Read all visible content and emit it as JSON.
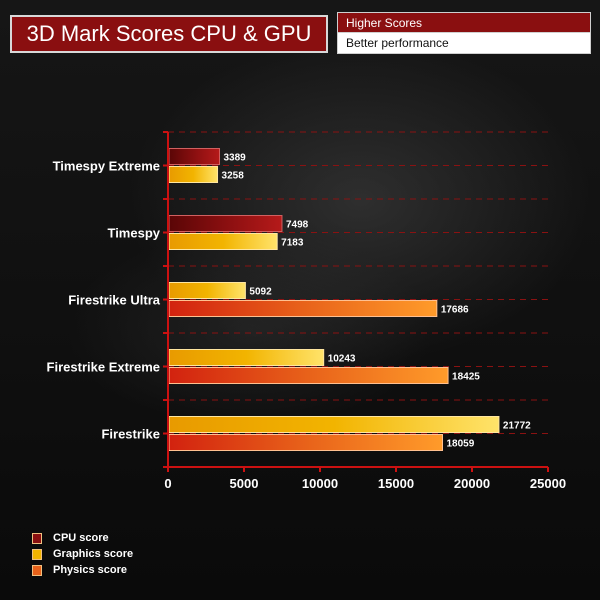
{
  "title": "3D Mark Scores CPU & GPU",
  "legend_top": {
    "line1": "Higher Scores",
    "line2": "Better performance"
  },
  "colors": {
    "cpu": "#8a0f10",
    "graphics": "#f2b400",
    "physics": "#e8621a",
    "axis": "#cc1111",
    "title_bg": "#8a0f10"
  },
  "chart_data": {
    "type": "bar",
    "orientation": "horizontal",
    "title": "3D Mark Scores CPU & GPU",
    "categories": [
      "Timespy Extreme",
      "Timespy",
      "Firestrike Ultra",
      "Firestrike Extreme",
      "Firestrike"
    ],
    "series": [
      {
        "name": "CPU score",
        "color": "#8a0f10",
        "values": [
          3389,
          7498,
          null,
          null,
          null
        ]
      },
      {
        "name": "Graphics score",
        "color": "#f2b400",
        "values": [
          3258,
          7183,
          5092,
          10243,
          21772
        ]
      },
      {
        "name": "Physics score",
        "color": "#e8621a",
        "values": [
          null,
          null,
          17686,
          18425,
          18059
        ]
      }
    ],
    "xlim": [
      0,
      25000
    ],
    "xticks": [
      0,
      5000,
      10000,
      15000,
      20000,
      25000
    ],
    "xtick_labels": [
      "0",
      "5000",
      "10000",
      "15000",
      "20000",
      "25000"
    ],
    "grid": "horizontal dashed",
    "legend_position": "bottom-left"
  }
}
